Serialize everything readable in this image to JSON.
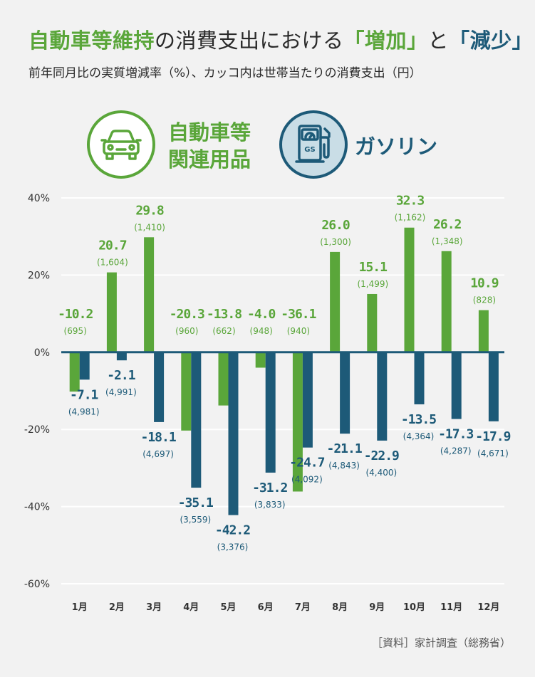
{
  "title": {
    "part1": "自動車等維持",
    "part2": "の消費支出における",
    "part3": "「増加」",
    "part4": "と",
    "part5": "「減少」"
  },
  "subtitle": "前年同月比の実質増減率（%）、カッコ内は世帯当たりの消費支出（円）",
  "legend": {
    "car_line1": "自動車等",
    "car_line2": "関連用品",
    "gas": "ガソリン",
    "car_icon": "car-icon",
    "gas_icon": "gas-station-icon"
  },
  "source": "［資料］家計調査（総務省）",
  "colors": {
    "car": "#5aa63a",
    "gas": "#1d5a78",
    "grid": "#ffffff",
    "axis": "#1d5a78"
  },
  "chart_data": {
    "type": "bar",
    "categories": [
      "1月",
      "2月",
      "3月",
      "4月",
      "5月",
      "6月",
      "7月",
      "8月",
      "9月",
      "10月",
      "11月",
      "12月"
    ],
    "ylim": [
      -60,
      40
    ],
    "yticks": [
      "40%",
      "20%",
      "0%",
      "-20%",
      "-40%",
      "-60%"
    ],
    "ytick_values": [
      40,
      20,
      0,
      -20,
      -40,
      -60
    ],
    "series": [
      {
        "name": "自動車等関連用品",
        "values": [
          -10.2,
          20.7,
          29.8,
          -20.3,
          -13.8,
          -4.0,
          -36.1,
          26.0,
          15.1,
          32.3,
          26.2,
          10.9
        ],
        "value_labels": [
          "-10.2",
          "20.7",
          "29.8",
          "-20.3",
          "-13.8",
          "-4.0",
          "-36.1",
          "26.0",
          "15.1",
          "32.3",
          "26.2",
          "10.9"
        ],
        "spending": [
          "(695)",
          "(1,604)",
          "(1,410)",
          "(960)",
          "(662)",
          "(948)",
          "(940)",
          "(1,300)",
          "(1,499)",
          "(1,162)",
          "(1,348)",
          "(828)"
        ]
      },
      {
        "name": "ガソリン",
        "values": [
          -7.1,
          -2.1,
          -18.1,
          -35.1,
          -42.2,
          -31.2,
          -24.7,
          -21.1,
          -22.9,
          -13.5,
          -17.3,
          -17.9
        ],
        "value_labels": [
          "-7.1",
          "-2.1",
          "-18.1",
          "-35.1",
          "-42.2",
          "-31.2",
          "-24.7",
          "-21.1",
          "-22.9",
          "-13.5",
          "-17.3",
          "-17.9"
        ],
        "spending": [
          "(4,981)",
          "(4,991)",
          "(4,697)",
          "(3,559)",
          "(3,376)",
          "(3,833)",
          "(4,092)",
          "(4,843)",
          "(4,400)",
          "(4,364)",
          "(4,287)",
          "(4,671)"
        ]
      }
    ]
  }
}
